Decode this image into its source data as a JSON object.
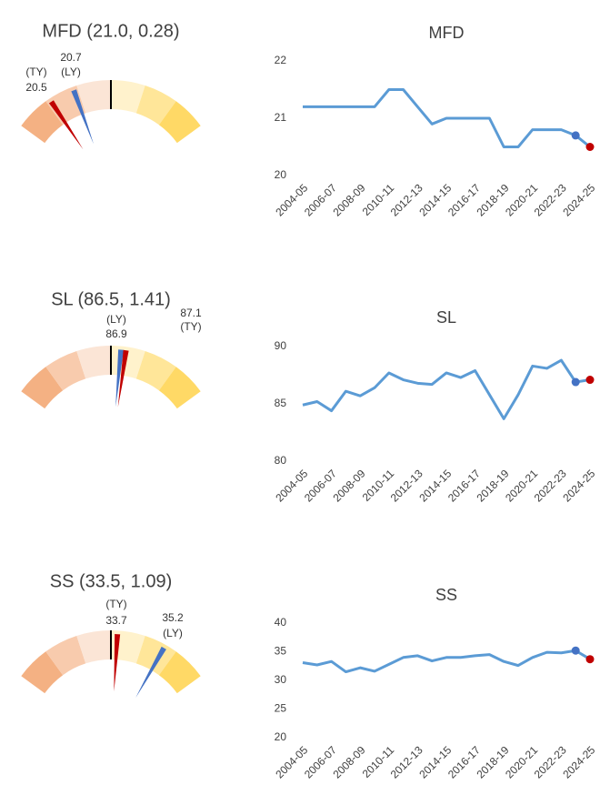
{
  "chart_data": [
    {
      "type": "gauge",
      "title": "MFD (21.0, 0.28)",
      "lim": [
        20.2,
        21.8
      ],
      "target": 21.0,
      "ty": 20.5,
      "ly": 20.7,
      "ty_label": "(TY)",
      "ly_label": "(LY)",
      "ty_color": "#c00000",
      "ly_color": "#4472c4",
      "target_color": "#000000",
      "band_colors": [
        "#f4b183",
        "#f8cbad",
        "#fbe5d6",
        "#fff2cc",
        "#ffe699",
        "#ffd966"
      ]
    },
    {
      "type": "line",
      "title": "MFD",
      "categories": [
        "2004-05",
        null,
        "2006-07",
        null,
        "2008-09",
        null,
        "2010-11",
        null,
        "2012-13",
        null,
        "2014-15",
        null,
        "2016-17",
        null,
        "2018-19",
        null,
        "2020-21",
        null,
        "2022-23",
        null,
        "2024-25"
      ],
      "series": [
        {
          "color": "#5b9bd5",
          "values": [
            21.2,
            21.2,
            21.2,
            21.2,
            21.2,
            21.2,
            21.5,
            21.5,
            21.2,
            20.9,
            21.0,
            21.0,
            21.0,
            21.0,
            20.5,
            20.5,
            20.8,
            20.8,
            20.8,
            20.7,
            20.5
          ]
        }
      ],
      "ly_color": "#4472c4",
      "ty_color": "#c00000",
      "ylim": [
        20,
        22
      ],
      "yticks": [
        20,
        21,
        22
      ],
      "grid": false
    },
    {
      "type": "gauge",
      "title": "SL (86.5, 1.41)",
      "lim": [
        82.5,
        90.5
      ],
      "target": 86.5,
      "ty": 87.1,
      "ly": 86.9,
      "ty_label": "(TY)",
      "ly_label": "(LY)",
      "ty_color": "#c00000",
      "ly_color": "#4472c4",
      "target_color": "#000000",
      "band_colors": [
        "#f4b183",
        "#f8cbad",
        "#fbe5d6",
        "#fff2cc",
        "#ffe699",
        "#ffd966"
      ]
    },
    {
      "type": "line",
      "title": "SL",
      "categories": [
        "2004-05",
        null,
        "2006-07",
        null,
        "2008-09",
        null,
        "2010-11",
        null,
        "2012-13",
        null,
        "2014-15",
        null,
        "2016-17",
        null,
        "2018-19",
        null,
        "2020-21",
        null,
        "2022-23",
        null,
        "2024-25"
      ],
      "series": [
        {
          "color": "#5b9bd5",
          "values": [
            84.9,
            85.2,
            84.4,
            86.1,
            85.7,
            86.4,
            87.7,
            87.1,
            86.8,
            86.7,
            87.7,
            87.3,
            87.9,
            85.8,
            83.7,
            85.8,
            88.3,
            88.1,
            88.8,
            86.9,
            87.1
          ]
        }
      ],
      "ly_color": "#4472c4",
      "ty_color": "#c00000",
      "ylim": [
        80,
        90
      ],
      "yticks": [
        80,
        85,
        90
      ],
      "grid": false
    },
    {
      "type": "gauge",
      "title": "SS (33.5, 1.09)",
      "lim": [
        30.4,
        36.6
      ],
      "target": 33.5,
      "ty": 33.7,
      "ly": 35.2,
      "ty_label": "(TY)",
      "ly_label": "(LY)",
      "ty_color": "#c00000",
      "ly_color": "#4472c4",
      "target_color": "#000000",
      "band_colors": [
        "#f4b183",
        "#f8cbad",
        "#fbe5d6",
        "#fff2cc",
        "#ffe699",
        "#ffd966"
      ]
    },
    {
      "type": "line",
      "title": "SS",
      "categories": [
        "2004-05",
        null,
        "2006-07",
        null,
        "2008-09",
        null,
        "2010-11",
        null,
        "2012-13",
        null,
        "2014-15",
        null,
        "2016-17",
        null,
        "2018-19",
        null,
        "2020-21",
        null,
        "2022-23",
        null,
        "2024-25"
      ],
      "series": [
        {
          "color": "#5b9bd5",
          "values": [
            33.1,
            32.7,
            33.3,
            31.5,
            32.2,
            31.6,
            32.8,
            34.0,
            34.3,
            33.4,
            34.0,
            34.0,
            34.3,
            34.5,
            33.3,
            32.6,
            34.0,
            34.9,
            34.8,
            35.2,
            33.7
          ]
        }
      ],
      "ly_color": "#4472c4",
      "ty_color": "#c00000",
      "ylim": [
        20,
        40
      ],
      "yticks": [
        20,
        25,
        30,
        35,
        40
      ],
      "grid": false
    }
  ]
}
